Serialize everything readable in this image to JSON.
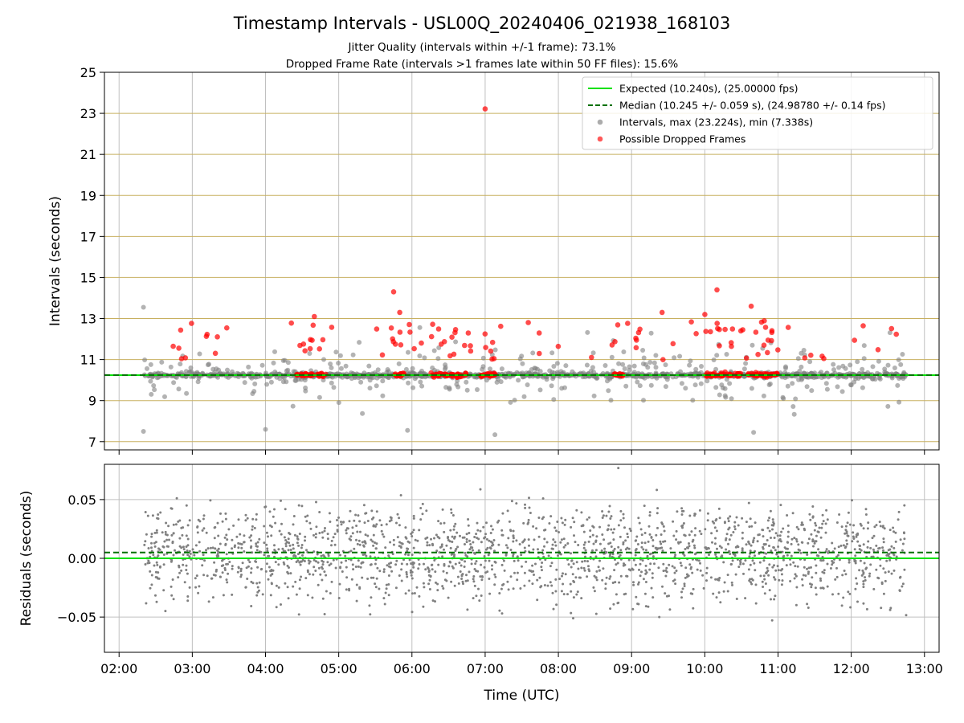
{
  "header": {
    "title": "Timestamp Intervals - USL00Q_20240406_021938_168103",
    "subtitle_jitter": "Jitter Quality (intervals within +/-1 frame): 73.1%",
    "subtitle_dropped": "Dropped Frame Rate (intervals >1 frames late within 50 FF files): 15.6%"
  },
  "colors": {
    "expected": "#00e000",
    "median": "#007000",
    "intervals": "#808080",
    "dropped": "#ff0000",
    "hgrid_top": "#c8b060",
    "vgrid": "#c0c0c0"
  },
  "chart_data": [
    {
      "type": "scatter",
      "panel": "intervals",
      "ylabel": "Intervals (seconds)",
      "xlabel": "",
      "xlim": [
        "02:00",
        "13:00"
      ],
      "ylim": [
        6.6,
        25
      ],
      "yticks": [
        "7",
        "9",
        "11",
        "13",
        "15",
        "17",
        "19",
        "21",
        "23",
        "25"
      ],
      "xticks": [
        "02:00",
        "03:00",
        "04:00",
        "05:00",
        "06:00",
        "07:00",
        "08:00",
        "09:00",
        "10:00",
        "11:00",
        "12:00",
        "13:00"
      ],
      "grid": true,
      "legend_placement": "top-right",
      "legend": [
        {
          "key": "expected",
          "label": "Expected (10.240s), (25.00000 fps)"
        },
        {
          "key": "median",
          "label": "Median (10.245 +/- 0.059 s), (24.98780 +/- 0.14 fps)"
        },
        {
          "key": "intervals",
          "label": "Intervals, max (23.224s), min (7.338s)"
        },
        {
          "key": "dropped",
          "label": "Possible Dropped Frames"
        }
      ],
      "expected_value": 10.24,
      "median_value": 10.245,
      "time_range": [
        "02:20",
        "12:45"
      ],
      "dropped_cluster_times": [
        "04:30",
        "04:35",
        "04:45",
        "05:50",
        "06:20",
        "06:30",
        "06:40",
        "07:00",
        "07:05",
        "08:50",
        "10:05",
        "10:15",
        "10:25",
        "10:40",
        "10:50",
        "10:55"
      ],
      "outliers": [
        {
          "t": "02:20",
          "y": 13.55,
          "kind": "interval"
        },
        {
          "t": "02:20",
          "y": 7.5,
          "kind": "interval"
        },
        {
          "t": "04:00",
          "y": 7.6,
          "kind": "interval"
        },
        {
          "t": "07:08",
          "y": 7.34,
          "kind": "interval"
        },
        {
          "t": "10:40",
          "y": 7.45,
          "kind": "interval"
        },
        {
          "t": "07:00",
          "y": 23.22,
          "kind": "dropped"
        },
        {
          "t": "05:45",
          "y": 14.3,
          "kind": "dropped"
        },
        {
          "t": "05:50",
          "y": 13.3,
          "kind": "dropped"
        },
        {
          "t": "10:10",
          "y": 14.4,
          "kind": "dropped"
        },
        {
          "t": "10:38",
          "y": 13.6,
          "kind": "dropped"
        },
        {
          "t": "10:00",
          "y": 13.2,
          "kind": "dropped"
        },
        {
          "t": "04:40",
          "y": 13.1,
          "kind": "dropped"
        },
        {
          "t": "09:25",
          "y": 13.3,
          "kind": "dropped"
        }
      ]
    },
    {
      "type": "scatter",
      "panel": "residuals",
      "ylabel": "Residuals (seconds)",
      "xlabel": "Time (UTC)",
      "xlim": [
        "02:00",
        "13:00"
      ],
      "ylim": [
        -0.08,
        0.08
      ],
      "yticks": [
        "−0.05",
        "0.00",
        "0.05"
      ],
      "xticks": [
        "02:00",
        "03:00",
        "04:00",
        "05:00",
        "06:00",
        "07:00",
        "08:00",
        "09:00",
        "10:00",
        "11:00",
        "12:00",
        "13:00"
      ],
      "grid": true,
      "expected_value": 0.0,
      "median_value": 0.005,
      "time_range": [
        "02:20",
        "12:45"
      ]
    }
  ]
}
